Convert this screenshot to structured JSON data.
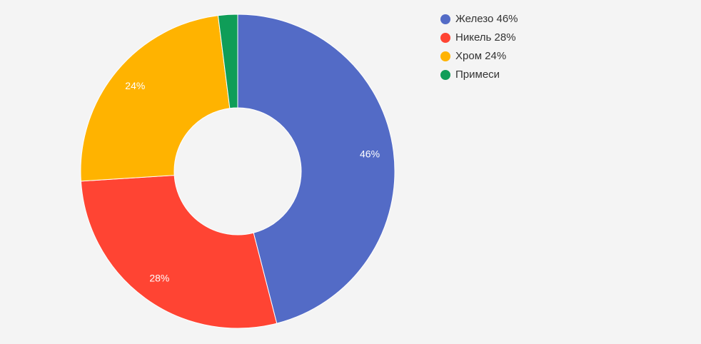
{
  "chart_data": {
    "type": "pie",
    "variant": "donut",
    "title": "",
    "categories": [
      "Железо",
      "Никель",
      "Хром",
      "Примеси"
    ],
    "values": [
      46,
      28,
      24,
      2
    ],
    "slice_labels": [
      "46%",
      "28%",
      "24%",
      ""
    ],
    "legend": {
      "placement": "top-right",
      "entries": [
        "Железо 46%",
        "Никель 28%",
        "Хром 24%",
        "Примеси"
      ]
    },
    "colors": [
      "#536bc6",
      "#ff4433",
      "#ffb300",
      "#0f9d58"
    ],
    "start_angle_deg": 0,
    "direction": "clockwise"
  },
  "background": "#f4f4f4"
}
